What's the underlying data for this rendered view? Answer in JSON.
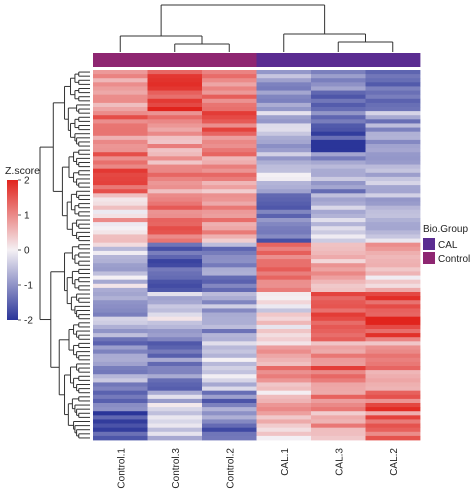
{
  "chart_data": {
    "type": "heatmap",
    "title": "",
    "xlabel": "",
    "ylabel": "",
    "columns": [
      "Control.1",
      "Control.3",
      "Control.2",
      "CAL.1",
      "CAL.3",
      "CAL.2"
    ],
    "column_groups": [
      "Control",
      "Control",
      "Control",
      "CAL",
      "CAL",
      "CAL"
    ],
    "row_count": 90,
    "row_labels_visible": false,
    "cluster_dendrograms": {
      "rows": true,
      "columns": true
    },
    "column_tree_order": [
      [
        0,
        [
          1,
          2
        ]
      ],
      [
        3,
        [
          4,
          5
        ]
      ]
    ],
    "color_scale": {
      "title": "Z.score",
      "range": [
        -2,
        2
      ],
      "ticks": [
        2,
        1,
        0,
        -1,
        -2
      ],
      "colors": {
        "low": "#2a3599",
        "mid": "#f4f0f4",
        "high": "#e1241d"
      }
    },
    "annotation_legend": {
      "title": "Bio.Group",
      "items": [
        {
          "label": "CAL",
          "color": "#5a2c91"
        },
        {
          "label": "Control",
          "color": "#8e2671"
        }
      ]
    },
    "row_blocks": [
      {
        "rows": 10,
        "means": [
          0.8,
          1.7,
          1.3,
          -0.9,
          -1.2,
          -1.1
        ]
      },
      {
        "rows": 10,
        "means": [
          1.2,
          1.0,
          1.4,
          -0.6,
          -1.5,
          -0.8
        ]
      },
      {
        "rows": 10,
        "means": [
          1.4,
          0.7,
          1.0,
          -0.5,
          -0.9,
          -0.7
        ]
      },
      {
        "rows": 12,
        "means": [
          0.4,
          1.3,
          0.7,
          -1.4,
          -0.3,
          -0.5
        ]
      },
      {
        "rows": 12,
        "means": [
          -0.3,
          -1.4,
          -1.0,
          1.3,
          0.7,
          0.5
        ]
      },
      {
        "rows": 12,
        "means": [
          -0.8,
          -0.5,
          -0.7,
          0.2,
          1.5,
          1.7
        ]
      },
      {
        "rows": 12,
        "means": [
          -1.0,
          -1.2,
          -0.4,
          0.8,
          1.1,
          0.9
        ]
      },
      {
        "rows": 12,
        "means": [
          -1.4,
          -0.4,
          -1.2,
          0.6,
          0.8,
          1.3
        ]
      }
    ]
  }
}
